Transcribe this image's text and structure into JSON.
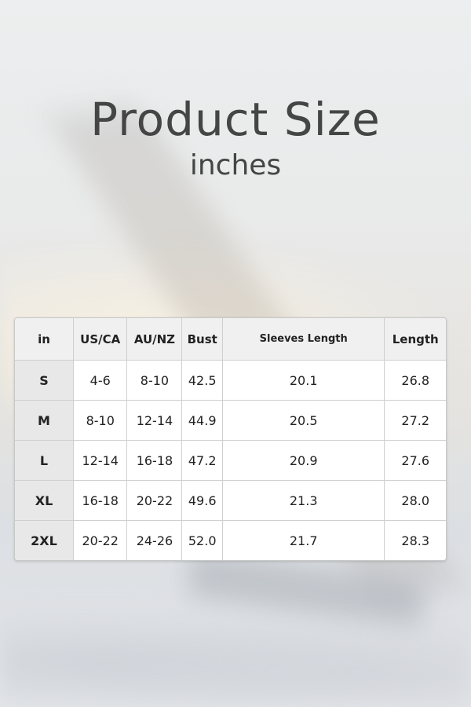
{
  "title": "Product Size",
  "subtitle": "inches",
  "table": {
    "headers": [
      "in",
      "US/CA",
      "AU/NZ",
      "Bust",
      "Sleeves Length",
      "Length"
    ],
    "rows": [
      [
        "S",
        "4-6",
        "8-10",
        "42.5",
        "20.1",
        "26.8"
      ],
      [
        "M",
        "8-10",
        "12-14",
        "44.9",
        "20.5",
        "27.2"
      ],
      [
        "L",
        "12-14",
        "16-18",
        "47.2",
        "20.9",
        "27.6"
      ],
      [
        "XL",
        "16-18",
        "20-22",
        "49.6",
        "21.3",
        "28.0"
      ],
      [
        "2XL",
        "20-22",
        "24-26",
        "52.0",
        "21.7",
        "28.3"
      ]
    ]
  }
}
